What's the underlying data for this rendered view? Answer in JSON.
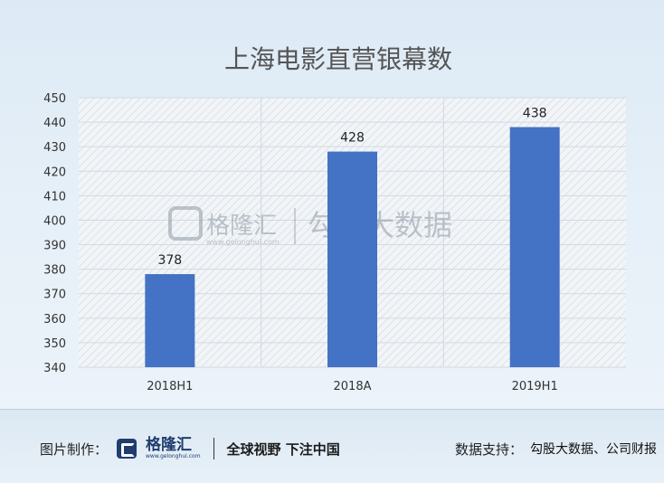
{
  "chart_data": {
    "type": "bar",
    "title": "上海电影直营银幕数",
    "categories": [
      "2018H1",
      "2018A",
      "2019H1"
    ],
    "values": [
      378,
      428,
      438
    ],
    "ylim": [
      340,
      450
    ],
    "yticks": [
      340,
      350,
      360,
      370,
      380,
      390,
      400,
      410,
      420,
      430,
      440,
      450
    ],
    "grid": true,
    "bar_color": "#4472c4"
  },
  "watermark": {
    "brand": "格隆汇",
    "url": "www.gelonghui.com",
    "text": "勾股大数据"
  },
  "footer": {
    "made_label": "图片制作：",
    "logo_name": "格隆汇",
    "logo_url": "www.gelonghui.com",
    "slogan": "全球视野 下注中国",
    "support_label": "数据支持：",
    "support_value": "勾股大数据、公司财报"
  }
}
